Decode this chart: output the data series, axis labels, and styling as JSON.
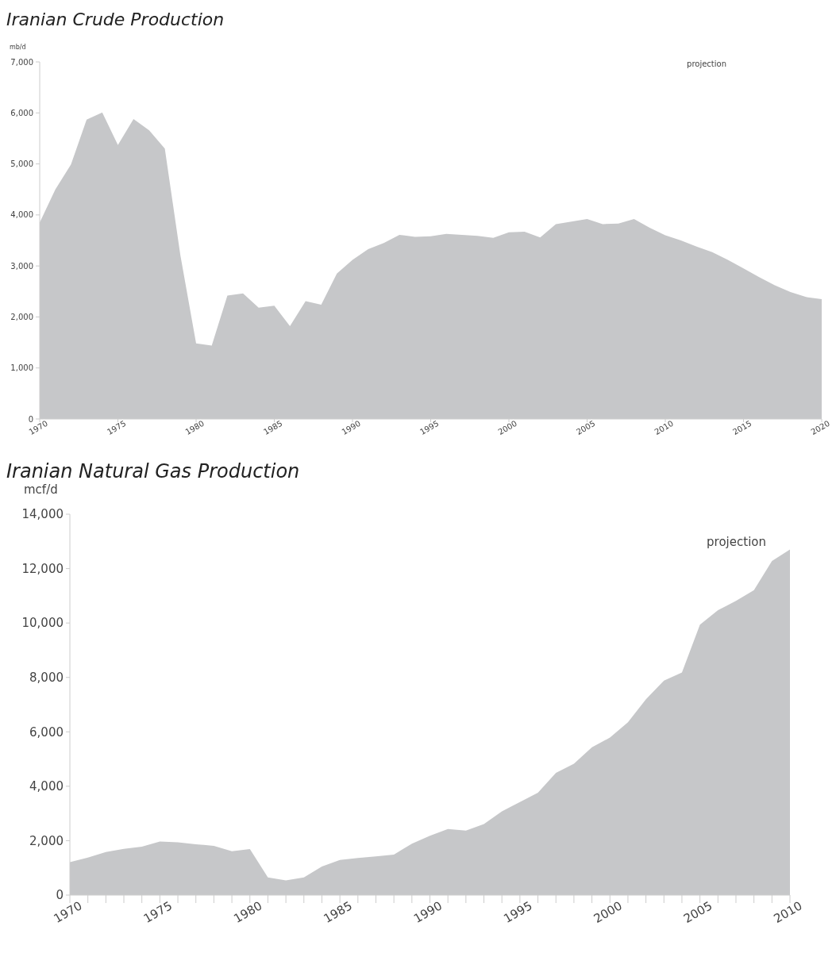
{
  "chart_data": [
    {
      "type": "area",
      "title": "Iranian Crude Production",
      "ylabel": "mb/d",
      "annotations": [
        "projection"
      ],
      "x": [
        1970,
        1971,
        1972,
        1973,
        1974,
        1975,
        1976,
        1977,
        1978,
        1979,
        1980,
        1981,
        1982,
        1983,
        1984,
        1985,
        1986,
        1987,
        1988,
        1989,
        1990,
        1991,
        1992,
        1993,
        1994,
        1995,
        1996,
        1997,
        1998,
        1999,
        2000,
        2001,
        2002,
        2003,
        2004,
        2005,
        2006,
        2007,
        2008,
        2009,
        2010,
        2011,
        2012,
        2013,
        2014,
        2015,
        2016,
        2017,
        2018,
        2019,
        2020
      ],
      "series": [
        {
          "color": "#c6c7c9",
          "values": [
            3850,
            4500,
            4990,
            5870,
            6010,
            5370,
            5880,
            5660,
            5300,
            3200,
            1480,
            1440,
            2420,
            2460,
            2180,
            2220,
            1820,
            2310,
            2240,
            2850,
            3120,
            3330,
            3450,
            3610,
            3570,
            3580,
            3630,
            3610,
            3590,
            3550,
            3660,
            3670,
            3560,
            3820,
            3870,
            3920,
            3820,
            3830,
            3920,
            3750,
            3600,
            3500,
            3380,
            3270,
            3120,
            2950,
            2780,
            2620,
            2490,
            2390,
            2350
          ]
        }
      ],
      "xlim": [
        1970,
        2020
      ],
      "xticks": [
        1970,
        1975,
        1980,
        1985,
        1990,
        1995,
        2000,
        2005,
        2010,
        2015,
        2020
      ],
      "ylim": [
        0,
        7000
      ],
      "yticks": [
        0,
        {
          "value": 1000,
          "label": "1,000"
        },
        {
          "value": 2000,
          "label": "2,000"
        },
        {
          "value": 3000,
          "label": "3,000"
        },
        {
          "value": 4000,
          "label": "4,000"
        },
        {
          "value": 5000,
          "label": "5,000"
        },
        {
          "value": 6000,
          "label": "6,000"
        },
        {
          "value": 7000,
          "label": "7,000"
        }
      ]
    },
    {
      "type": "area",
      "title": "Iranian Natural Gas Production",
      "ylabel": "mcf/d",
      "annotations": [
        "projection"
      ],
      "x": [
        1970,
        1971,
        1972,
        1973,
        1974,
        1975,
        1976,
        1977,
        1978,
        1979,
        1980,
        1981,
        1982,
        1983,
        1984,
        1985,
        1986,
        1987,
        1988,
        1989,
        1990,
        1991,
        1992,
        1993,
        1994,
        1995,
        1996,
        1997,
        1998,
        1999,
        2000,
        2001,
        2002,
        2003,
        2004,
        2005,
        2006,
        2007,
        2008,
        2009,
        2010
      ],
      "series": [
        {
          "color": "#c6c7c9",
          "values": [
            1210,
            1380,
            1580,
            1700,
            1780,
            1970,
            1940,
            1870,
            1810,
            1610,
            1690,
            650,
            540,
            650,
            1050,
            1290,
            1360,
            1420,
            1490,
            1890,
            2180,
            2430,
            2370,
            2610,
            3080,
            3420,
            3760,
            4490,
            4830,
            5430,
            5790,
            6350,
            7200,
            7880,
            8180,
            9940,
            10470,
            10810,
            11210,
            12280,
            12700
          ]
        }
      ],
      "xlim": [
        1970,
        2010
      ],
      "xticks": [
        1970,
        {
          "value": 1971,
          "label": null
        },
        {
          "value": 1972,
          "label": null
        },
        {
          "value": 1973,
          "label": null
        },
        {
          "value": 1974,
          "label": null
        },
        1975,
        {
          "value": 1976,
          "label": null
        },
        {
          "value": 1977,
          "label": null
        },
        {
          "value": 1978,
          "label": null
        },
        {
          "value": 1979,
          "label": null
        },
        1980,
        {
          "value": 1981,
          "label": null
        },
        {
          "value": 1982,
          "label": null
        },
        {
          "value": 1983,
          "label": null
        },
        {
          "value": 1984,
          "label": null
        },
        1985,
        {
          "value": 1986,
          "label": null
        },
        {
          "value": 1987,
          "label": null
        },
        {
          "value": 1988,
          "label": null
        },
        {
          "value": 1989,
          "label": null
        },
        1990,
        {
          "value": 1991,
          "label": null
        },
        {
          "value": 1992,
          "label": null
        },
        {
          "value": 1993,
          "label": null
        },
        {
          "value": 1994,
          "label": null
        },
        1995,
        {
          "value": 1996,
          "label": null
        },
        {
          "value": 1997,
          "label": null
        },
        {
          "value": 1998,
          "label": null
        },
        {
          "value": 1999,
          "label": null
        },
        2000,
        {
          "value": 2001,
          "label": null
        },
        {
          "value": 2002,
          "label": null
        },
        {
          "value": 2003,
          "label": null
        },
        {
          "value": 2004,
          "label": null
        },
        2005,
        {
          "value": 2006,
          "label": null
        },
        {
          "value": 2007,
          "label": null
        },
        {
          "value": 2008,
          "label": null
        },
        {
          "value": 2009,
          "label": null
        },
        2010
      ],
      "ylim": [
        0,
        14000
      ],
      "yticks": [
        0,
        {
          "value": 2000,
          "label": "2,000"
        },
        {
          "value": 4000,
          "label": "4,000"
        },
        {
          "value": 6000,
          "label": "6,000"
        },
        {
          "value": 8000,
          "label": "8,000"
        },
        {
          "value": 10000,
          "label": "10,000"
        },
        {
          "value": 12000,
          "label": "12,000"
        },
        {
          "value": 14000,
          "label": "14,000"
        }
      ]
    }
  ]
}
